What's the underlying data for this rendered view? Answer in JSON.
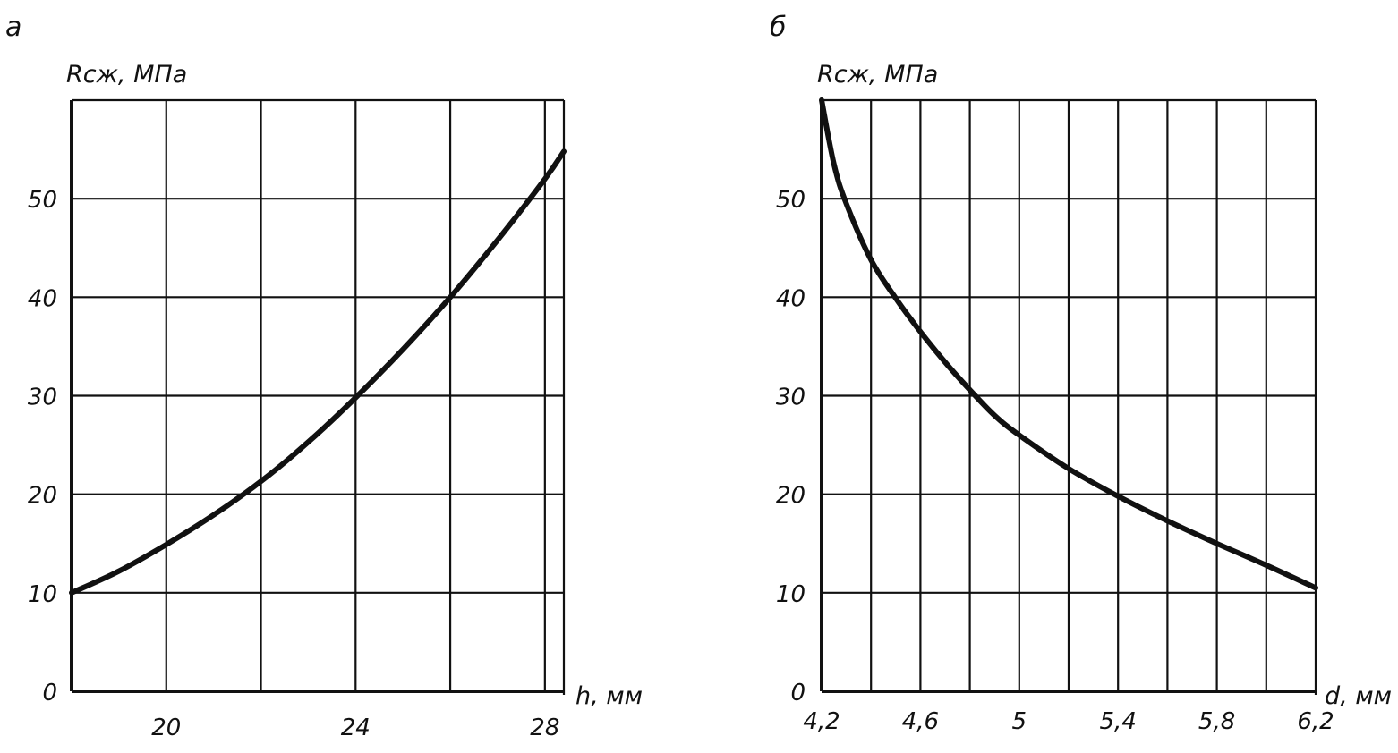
{
  "chart_data": [
    {
      "type": "line",
      "panel_label": "а",
      "ylabel": "Rсж, МПа",
      "xlabel": "h, мм",
      "xlim": [
        18,
        28.4
      ],
      "ylim": [
        0,
        60
      ],
      "x_gridlines": [
        20,
        22,
        24,
        26,
        28
      ],
      "y_gridlines": [
        10,
        20,
        30,
        40,
        50
      ],
      "x_tick_labels": [
        {
          "value": 20,
          "label": "20"
        },
        {
          "value": 24,
          "label": "24"
        },
        {
          "value": 28,
          "label": "28"
        }
      ],
      "y_tick_labels": [
        {
          "value": 0,
          "label": "0"
        },
        {
          "value": 10,
          "label": "10"
        },
        {
          "value": 20,
          "label": "20"
        },
        {
          "value": 30,
          "label": "30"
        },
        {
          "value": 40,
          "label": "40"
        },
        {
          "value": 50,
          "label": "50"
        }
      ],
      "grid": true,
      "series": [
        {
          "x": [
            18.0,
            19.0,
            20.0,
            21.0,
            22.0,
            23.0,
            24.0,
            25.0,
            26.0,
            27.0,
            28.0,
            28.4
          ],
          "y": [
            10.0,
            12.2,
            14.9,
            17.9,
            21.3,
            25.3,
            29.8,
            34.7,
            40.0,
            45.8,
            52.0,
            54.8
          ]
        }
      ]
    },
    {
      "type": "line",
      "panel_label": "б",
      "ylabel": "Rсж, МПа",
      "xlabel": "d, мм",
      "xlim": [
        4.2,
        6.2
      ],
      "ylim": [
        0,
        60
      ],
      "x_gridlines": [
        4.4,
        4.6,
        4.8,
        5.0,
        5.2,
        5.4,
        5.6,
        5.8,
        6.0
      ],
      "y_gridlines": [
        10,
        20,
        30,
        40,
        50
      ],
      "x_tick_labels": [
        {
          "value": 4.2,
          "label": "4,2"
        },
        {
          "value": 4.6,
          "label": "4,6"
        },
        {
          "value": 5.0,
          "label": "5"
        },
        {
          "value": 5.4,
          "label": "5,4"
        },
        {
          "value": 5.8,
          "label": "5,8"
        },
        {
          "value": 6.2,
          "label": "6,2"
        }
      ],
      "y_tick_labels": [
        {
          "value": 0,
          "label": "0"
        },
        {
          "value": 10,
          "label": "10"
        },
        {
          "value": 20,
          "label": "20"
        },
        {
          "value": 30,
          "label": "30"
        },
        {
          "value": 40,
          "label": "40"
        },
        {
          "value": 50,
          "label": "50"
        }
      ],
      "grid": true,
      "series": [
        {
          "x": [
            4.2,
            4.25,
            4.3,
            4.4,
            4.5,
            4.6,
            4.7,
            4.8,
            4.9,
            5.0,
            5.2,
            5.4,
            5.6,
            5.8,
            6.0,
            6.2
          ],
          "y": [
            60.0,
            53.5,
            49.5,
            43.8,
            39.9,
            36.5,
            33.4,
            30.6,
            28.0,
            26.0,
            22.6,
            19.8,
            17.3,
            15.0,
            12.8,
            10.5
          ]
        }
      ]
    }
  ]
}
